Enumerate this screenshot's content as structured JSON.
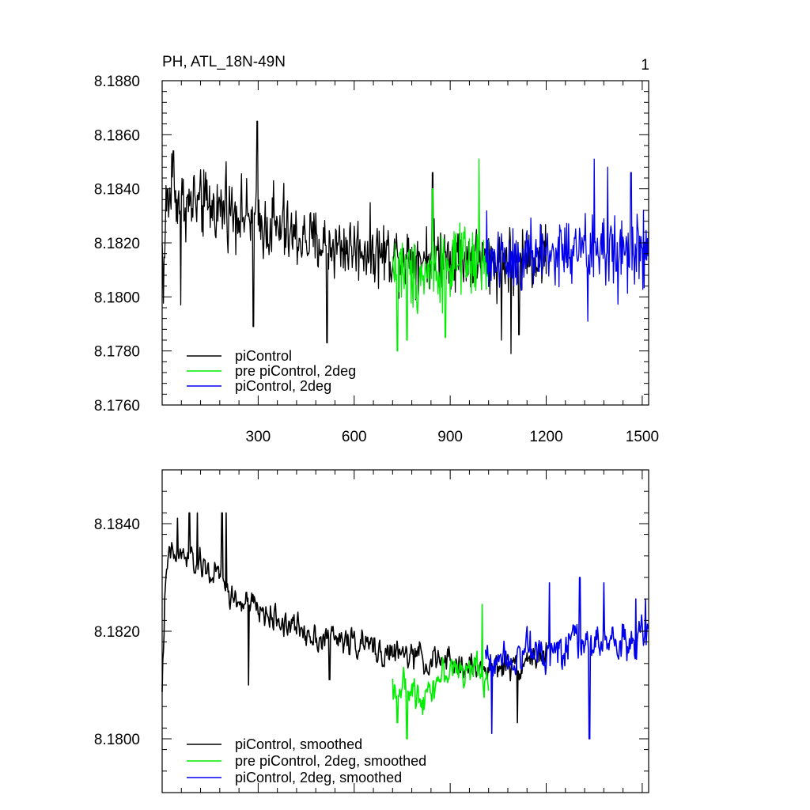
{
  "chart_data": [
    {
      "type": "line",
      "title": "PH, ATL_18N-49N",
      "corner_label": "1",
      "xlabel": "",
      "ylabel": "",
      "xlim": [
        0,
        1520
      ],
      "ylim": [
        8.176,
        8.188
      ],
      "x_ticks": [
        300,
        600,
        900,
        1200,
        1500
      ],
      "x_tick_labels": [
        "300",
        "600",
        "900",
        "1200",
        "1500"
      ],
      "y_ticks": [
        8.176,
        8.178,
        8.18,
        8.182,
        8.184,
        8.186,
        8.188
      ],
      "y_tick_labels": [
        "8.1760",
        "8.1780",
        "8.1800",
        "8.1820",
        "8.1840",
        "8.1860",
        "8.1880"
      ],
      "grid": false,
      "legend_position": "bottom-left",
      "series": [
        {
          "name": "piControl",
          "color": "#000000",
          "x_range": [
            0,
            1200
          ],
          "anchors": [
            [
              0,
              8.1818
            ],
            [
              5,
              8.1805
            ],
            [
              12,
              8.1834
            ],
            [
              30,
              8.1838
            ],
            [
              80,
              8.1834
            ],
            [
              150,
              8.1833
            ],
            [
              230,
              8.1832
            ],
            [
              300,
              8.1827
            ],
            [
              420,
              8.1822
            ],
            [
              520,
              8.1819
            ],
            [
              620,
              8.1818
            ],
            [
              700,
              8.1816
            ],
            [
              800,
              8.1815
            ],
            [
              900,
              8.1816
            ],
            [
              1000,
              8.1813
            ],
            [
              1100,
              8.1814
            ],
            [
              1200,
              8.1815
            ]
          ],
          "noise": 0.0011,
          "spikes": [
            [
              30,
              8.1853
            ],
            [
              35,
              8.1854
            ],
            [
              58,
              8.1797
            ],
            [
              100,
              8.1845
            ],
            [
              130,
              8.1847
            ],
            [
              200,
              8.185
            ],
            [
              297,
              8.1865
            ],
            [
              285,
              8.1789
            ],
            [
              348,
              8.1843
            ],
            [
              380,
              8.1842
            ],
            [
              515,
              8.1783
            ],
            [
              845,
              8.1846
            ],
            [
              1060,
              8.1784
            ],
            [
              1090,
              8.1779
            ],
            [
              1115,
              8.1786
            ]
          ]
        },
        {
          "name": "pre piControl, 2deg",
          "color": "#00ee00",
          "x_range": [
            720,
            1020
          ],
          "anchors": [
            [
              720,
              8.1812
            ],
            [
              800,
              8.1808
            ],
            [
              900,
              8.1812
            ],
            [
              1020,
              8.1812
            ]
          ],
          "noise": 0.0012,
          "spikes": [
            [
              735,
              8.178
            ],
            [
              765,
              8.1784
            ],
            [
              885,
              8.1785
            ],
            [
              990,
              8.1851
            ],
            [
              845,
              8.184
            ]
          ]
        },
        {
          "name": "piControl, 2deg",
          "color": "#0000ee",
          "x_range": [
            1010,
            1520
          ],
          "anchors": [
            [
              1010,
              8.1814
            ],
            [
              1200,
              8.1816
            ],
            [
              1350,
              8.1817
            ],
            [
              1520,
              8.1816
            ]
          ],
          "noise": 0.0013,
          "spikes": [
            [
              1350,
              8.1851
            ],
            [
              1392,
              8.1848
            ],
            [
              1330,
              8.1791
            ],
            [
              1465,
              8.1846
            ]
          ]
        }
      ]
    },
    {
      "type": "line",
      "title": "",
      "xlabel": "",
      "ylabel": "",
      "xlim": [
        0,
        1520
      ],
      "ylim": [
        8.179,
        8.185
      ],
      "x_ticks": [
        300,
        600,
        900,
        1200,
        1500
      ],
      "y_ticks": [
        8.18,
        8.182,
        8.184
      ],
      "y_tick_labels": [
        "8.1800",
        "8.1820",
        "8.1840"
      ],
      "grid": false,
      "legend_position": "bottom-left",
      "series": [
        {
          "name": "piControl, smoothed",
          "color": "#000000",
          "x_range": [
            0,
            1200
          ],
          "anchors": [
            [
              0,
              8.181
            ],
            [
              8,
              8.1825
            ],
            [
              20,
              8.1834
            ],
            [
              60,
              8.1834
            ],
            [
              120,
              8.1832
            ],
            [
              180,
              8.183
            ],
            [
              220,
              8.1826
            ],
            [
              300,
              8.1824
            ],
            [
              400,
              8.1821
            ],
            [
              500,
              8.1819
            ],
            [
              600,
              8.1818
            ],
            [
              700,
              8.1816
            ],
            [
              800,
              8.1815
            ],
            [
              900,
              8.1814
            ],
            [
              1000,
              8.1813
            ],
            [
              1100,
              8.1814
            ],
            [
              1200,
              8.1816
            ]
          ],
          "noise": 0.00045,
          "spikes": [
            [
              48,
              8.1841
            ],
            [
              85,
              8.1842
            ],
            [
              110,
              8.1842
            ],
            [
              187,
              8.1842
            ],
            [
              200,
              8.1842
            ],
            [
              270,
              8.181
            ],
            [
              523,
              8.1811
            ],
            [
              1110,
              8.1803
            ]
          ]
        },
        {
          "name": "pre piControl, 2deg, smoothed",
          "color": "#00ee00",
          "x_range": [
            720,
            1020
          ],
          "anchors": [
            [
              720,
              8.181
            ],
            [
              800,
              8.1808
            ],
            [
              900,
              8.1813
            ],
            [
              1020,
              8.1812
            ]
          ],
          "noise": 0.0005,
          "spikes": [
            [
              735,
              8.1803
            ],
            [
              765,
              8.18
            ],
            [
              1000,
              8.1825
            ]
          ]
        },
        {
          "name": "piControl, 2deg, smoothed",
          "color": "#0000ee",
          "x_range": [
            1010,
            1520
          ],
          "anchors": [
            [
              1010,
              8.1815
            ],
            [
              1200,
              8.1817
            ],
            [
              1350,
              8.1818
            ],
            [
              1520,
              8.1818
            ]
          ],
          "noise": 0.0006,
          "spikes": [
            [
              1030,
              8.1801
            ],
            [
              1210,
              8.1829
            ],
            [
              1305,
              8.183
            ],
            [
              1335,
              8.18
            ],
            [
              1380,
              8.1829
            ],
            [
              1480,
              8.1826
            ],
            [
              1510,
              8.1826
            ]
          ]
        }
      ]
    }
  ]
}
